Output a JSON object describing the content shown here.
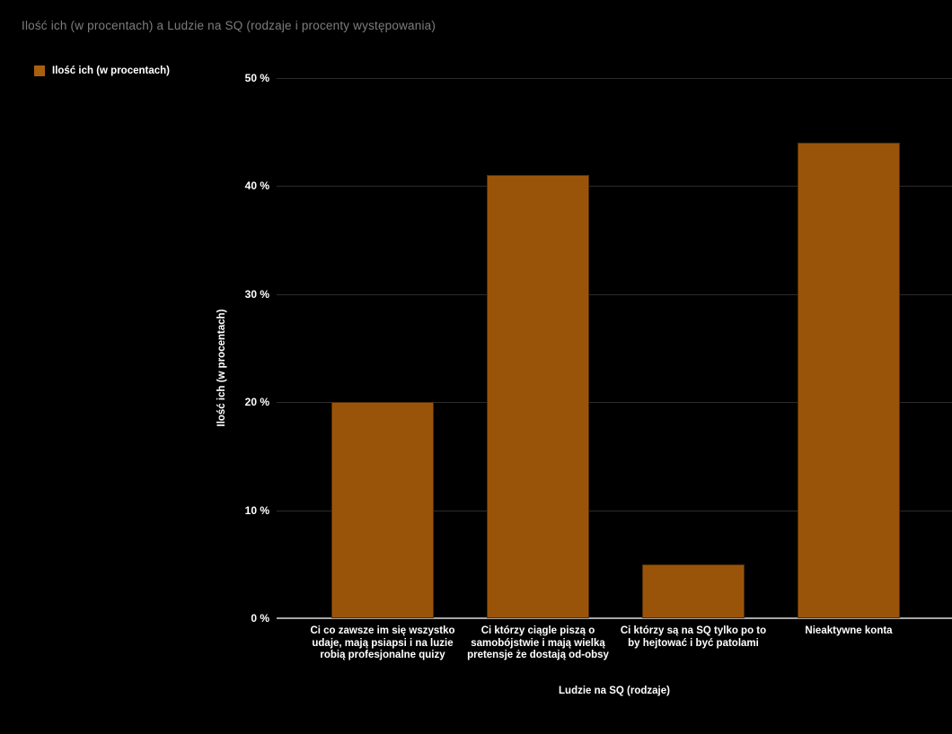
{
  "title": "Ilość ich (w procentach) a Ludzie na SQ (rodzaje i procenty występowania)",
  "legend": {
    "label": "Ilość ich (w procentach)",
    "swatch_color": "#a95f0e"
  },
  "chart_data": {
    "type": "bar",
    "title": "Ilość ich (w procentach) a Ludzie na SQ (rodzaje i procenty występowania)",
    "xlabel": "Ludzie na SQ (rodzaje)",
    "ylabel": "Ilość ich (w procentach)",
    "series_name": "Ilość ich (w procentach)",
    "categories": [
      "Ci co zawsze im się wszystko udaje, mają psiapsi i na luzie robią profesjonalne quizy",
      "Ci którzy ciągle piszą o samobójstwie i mają wielką pretensje że dostają od-obsy",
      "Ci którzy są na SQ tylko po to by hejtować i być patolami",
      "Nieaktywne konta"
    ],
    "category_lines": [
      [
        "Ci co zawsze im się wszystko",
        "udaje, mają psiapsi i na luzie",
        "robią profesjonalne quizy"
      ],
      [
        "Ci którzy ciągle piszą o",
        "samobójstwie i mają wielką",
        "pretensje że dostają od-obsy"
      ],
      [
        "Ci którzy są na SQ tylko po to",
        "by hejtować i być patolami"
      ],
      [
        "Nieaktywne konta"
      ]
    ],
    "values": [
      20,
      41,
      5,
      44
    ],
    "ylim": [
      0,
      50
    ],
    "yticks": [
      0,
      10,
      20,
      30,
      40,
      50
    ],
    "ytick_labels": [
      "0 %",
      "10 %",
      "20 %",
      "30 %",
      "40 %",
      "50 %"
    ],
    "grid": "horizontal-only",
    "legend_position": "top-left",
    "bar_color": "#9a5409",
    "background_color": "#000000",
    "title_color": "#7d7d7d",
    "axis_text_color": "#ffffff",
    "gridline_color": "#2b2b2b",
    "baseline_color": "#a6a6a6"
  }
}
